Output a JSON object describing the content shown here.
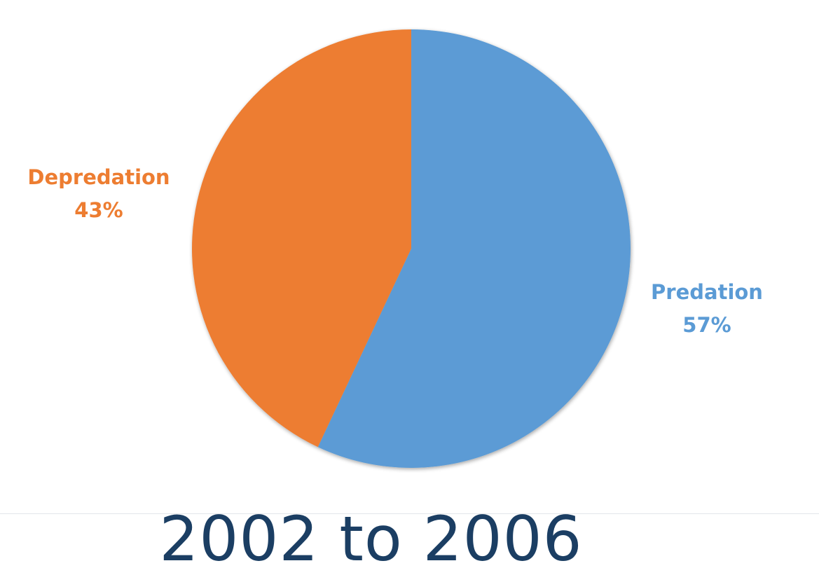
{
  "chart_data": {
    "type": "pie",
    "title": "",
    "slices": [
      {
        "label": "Predation",
        "percent_label": "57%",
        "value": 57,
        "color": "#5b9bd5"
      },
      {
        "label": "Depredation",
        "percent_label": "43%",
        "value": 43,
        "color": "#ed7d31"
      }
    ]
  },
  "caption": "2002 to 2006"
}
